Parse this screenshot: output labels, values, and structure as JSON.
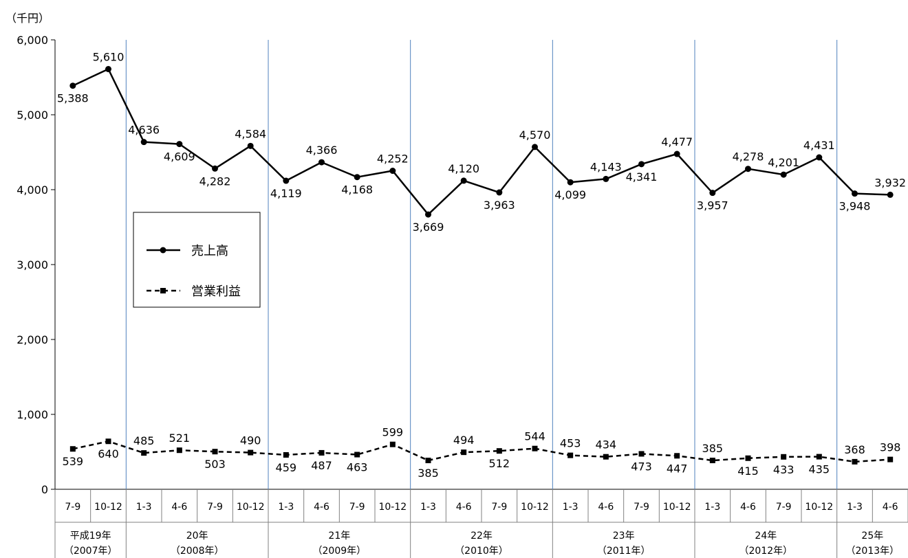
{
  "chart_data": {
    "type": "line",
    "unit_label": "（千円）",
    "ylim": [
      0,
      6000
    ],
    "y_ticks": [
      "0",
      "1,000",
      "2,000",
      "3,000",
      "4,000",
      "5,000",
      "6,000"
    ],
    "y_tick_values": [
      0,
      1000,
      2000,
      3000,
      4000,
      5000,
      6000
    ],
    "quarters": [
      "7-9",
      "10-12",
      "1-3",
      "4-6",
      "7-9",
      "10-12",
      "1-3",
      "4-6",
      "7-9",
      "10-12",
      "1-3",
      "4-6",
      "7-9",
      "10-12",
      "1-3",
      "4-6",
      "7-9",
      "10-12",
      "1-3",
      "4-6",
      "7-9",
      "10-12",
      "1-3",
      "4-6"
    ],
    "years": [
      {
        "line1": "平成19年",
        "line2": "（2007年）",
        "count": 2
      },
      {
        "line1": "20年",
        "line2": "（2008年）",
        "count": 4
      },
      {
        "line1": "21年",
        "line2": "（2009年）",
        "count": 4
      },
      {
        "line1": "22年",
        "line2": "（2010年）",
        "count": 4
      },
      {
        "line1": "23年",
        "line2": "（2011年）",
        "count": 4
      },
      {
        "line1": "24年",
        "line2": "（2012年）",
        "count": 4
      },
      {
        "line1": "25年",
        "line2": "（2013年）",
        "count": 2
      }
    ],
    "series": [
      {
        "name": "売上高",
        "style": "solid",
        "marker": "circle",
        "values": [
          5388,
          5610,
          4636,
          4609,
          4282,
          4584,
          4119,
          4366,
          4168,
          4252,
          3669,
          4120,
          3963,
          4570,
          4099,
          4143,
          4341,
          4477,
          3957,
          4278,
          4201,
          4431,
          3948,
          3932
        ],
        "labels": [
          "5,388",
          "5,610",
          "4,636",
          "4,609",
          "4,282",
          "4,584",
          "4,119",
          "4,366",
          "4,168",
          "4,252",
          "3,669",
          "4,120",
          "3,963",
          "4,570",
          "4,099",
          "4,143",
          "4,341",
          "4,477",
          "3,957",
          "4,278",
          "4,201",
          "4,431",
          "3,948",
          "3,932"
        ],
        "label_pos": [
          "below",
          "above",
          "above",
          "below",
          "below",
          "above",
          "below",
          "above",
          "below",
          "above",
          "below",
          "above",
          "below",
          "above",
          "below",
          "above",
          "below",
          "above",
          "below",
          "above",
          "above",
          "above",
          "below",
          "above"
        ]
      },
      {
        "name": "営業利益",
        "style": "dashed",
        "marker": "square",
        "values": [
          539,
          640,
          485,
          521,
          503,
          490,
          459,
          487,
          463,
          599,
          385,
          494,
          512,
          544,
          453,
          434,
          473,
          447,
          385,
          415,
          433,
          435,
          368,
          398
        ],
        "labels": [
          "539",
          "640",
          "485",
          "521",
          "503",
          "490",
          "459",
          "487",
          "463",
          "599",
          "385",
          "494",
          "512",
          "544",
          "453",
          "434",
          "473",
          "447",
          "385",
          "415",
          "433",
          "435",
          "368",
          "398"
        ],
        "label_pos": [
          "below",
          "below",
          "above",
          "above",
          "below",
          "above",
          "below",
          "below",
          "below",
          "above",
          "below",
          "above",
          "below",
          "above",
          "above",
          "above",
          "below",
          "below",
          "above",
          "below",
          "below",
          "below",
          "above",
          "above"
        ]
      }
    ],
    "legend": {
      "position": "inside-left"
    },
    "colors": {
      "line": "#000000",
      "year_divider": "#4f81bd",
      "axis": "#000000",
      "grid_cell": "#808080"
    }
  }
}
